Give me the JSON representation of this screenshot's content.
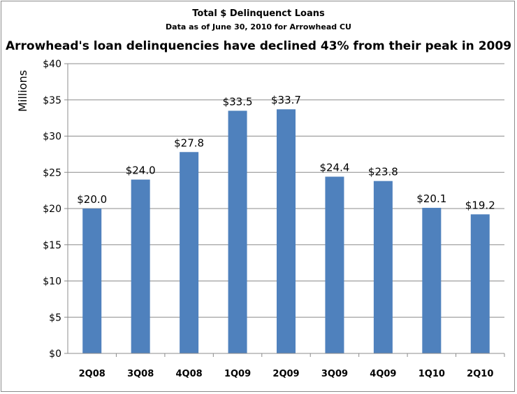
{
  "chart_data": {
    "type": "bar",
    "title": "Total $ Delinquenct Loans",
    "subtitle": "Data as of June 30, 2010 for Arrowhead CU",
    "headline": "Arrowhead's loan delinquencies have declined 43% from their peak in 2009",
    "xlabel": "",
    "ylabel": "Millions",
    "categories": [
      "2Q08",
      "3Q08",
      "4Q08",
      "1Q09",
      "2Q09",
      "3Q09",
      "4Q09",
      "1Q10",
      "2Q10"
    ],
    "values": [
      20.0,
      24.0,
      27.8,
      33.5,
      33.7,
      24.4,
      23.8,
      20.1,
      19.2
    ],
    "data_labels": [
      "$20.0",
      "$24.0",
      "$27.8",
      "$33.5",
      "$33.7",
      "$24.4",
      "$23.8",
      "$20.1",
      "$19.2"
    ],
    "yticks": [
      0,
      5,
      10,
      15,
      20,
      25,
      30,
      35,
      40
    ],
    "ytick_labels": [
      "$0",
      "$5",
      "$10",
      "$15",
      "$20",
      "$25",
      "$30",
      "$35",
      "$40"
    ],
    "ylim": [
      0,
      40
    ],
    "grid": true,
    "legend": "none",
    "bar_color": "#4f81bd",
    "grid_color": "#8c8c8c"
  }
}
